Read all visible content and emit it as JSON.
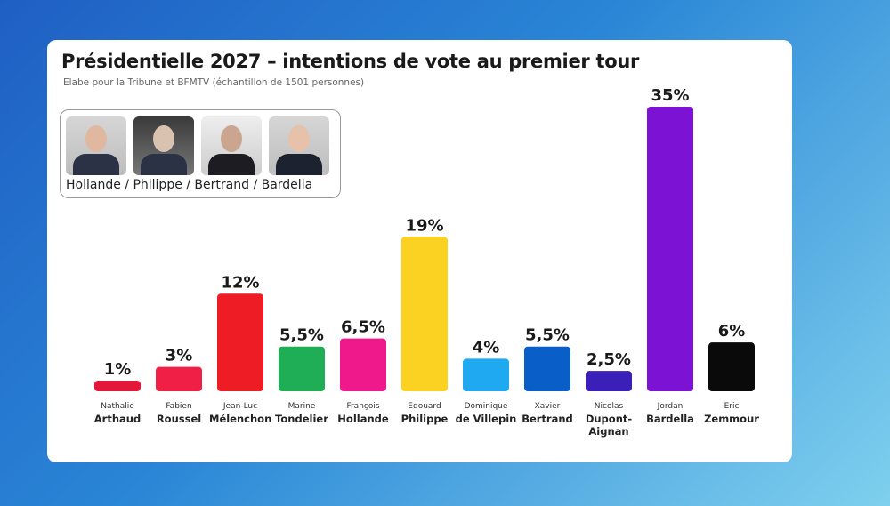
{
  "chart_data": {
    "type": "bar",
    "title": "Présidentielle 2027 – intentions de vote au premier tour",
    "subtitle": "Elabe pour la Tribune et  BFMTV (échantillon de 1501 personnes)",
    "categories": [
      {
        "first": "Nathalie",
        "last": "Arthaud"
      },
      {
        "first": "Fabien",
        "last": "Roussel"
      },
      {
        "first": "Jean-Luc",
        "last": "Mélenchon"
      },
      {
        "first": "Marine",
        "last": "Tondelier"
      },
      {
        "first": "François",
        "last": "Hollande"
      },
      {
        "first": "Edouard",
        "last": "Philippe"
      },
      {
        "first": "Dominique",
        "last": "de Villepin"
      },
      {
        "first": "Xavier",
        "last": "Bertrand"
      },
      {
        "first": "Nicolas",
        "last": "Dupont-Aignan"
      },
      {
        "first": "Jordan",
        "last": "Bardella"
      },
      {
        "first": "Eric",
        "last": "Zemmour"
      }
    ],
    "values": [
      1,
      3,
      12,
      5.5,
      6.5,
      19,
      4,
      5.5,
      2.5,
      35,
      6
    ],
    "labels": [
      "1%",
      "3%",
      "12%",
      "5,5%",
      "6,5%",
      "19%",
      "4%",
      "5,5%",
      "2,5%",
      "35%",
      "6%"
    ],
    "colors": [
      "#e3173a",
      "#ef1f45",
      "#ee1c25",
      "#1fae55",
      "#f0198c",
      "#fbd221",
      "#1fa9f0",
      "#0a5ec8",
      "#3a1fb8",
      "#7b12d4",
      "#0a0a0a"
    ],
    "ylim": [
      0,
      35
    ],
    "grid": false,
    "legend": "none"
  },
  "scenario": {
    "caption": "Hollande / Philippe / Bertrand / Bardella"
  }
}
